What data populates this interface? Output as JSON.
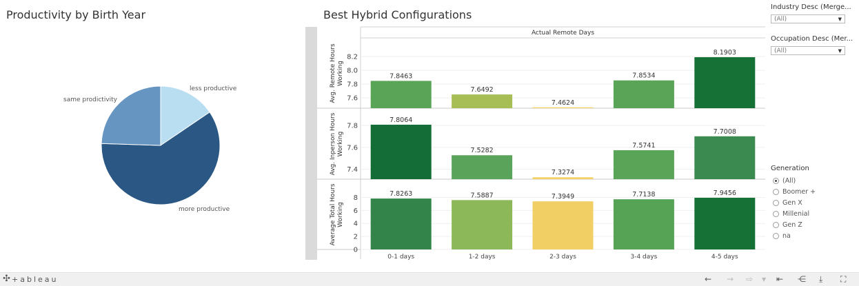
{
  "pie": {
    "title": "Productivity by Birth Year",
    "chart_data": {
      "type": "pie",
      "title": "Productivity by Birth Year",
      "slices": [
        {
          "label": "less productive",
          "value": 0.155,
          "color": "#b9ddf1"
        },
        {
          "label": "more productive",
          "value": 0.6,
          "color": "#2a5783"
        },
        {
          "label": "same prodictivity",
          "value": 0.245,
          "color": "#6795c2"
        }
      ]
    }
  },
  "bars": {
    "title": "Best Hybrid Configurations",
    "header": "Actual Remote Days",
    "chart_data": [
      {
        "type": "bar",
        "ylabel": "Avg. Remote Hours Working",
        "ylim": [
          7.45,
          8.3
        ],
        "ticks": [
          "8.2",
          "8.0",
          "7.8",
          "7.6"
        ],
        "tick_values": [
          8.2,
          8.0,
          7.8,
          7.6
        ],
        "categories": [
          "0-1 days",
          "1-2 days",
          "2-3 days",
          "3-4 days",
          "4-5 days"
        ],
        "values": [
          7.8463,
          7.6492,
          7.4624,
          7.8534,
          8.1903
        ],
        "labels": [
          "7.8463",
          "7.6492",
          "7.4624",
          "7.8534",
          "8.1903"
        ],
        "colors": [
          "#59a457",
          "#a6be55",
          "#f4d166",
          "#59a457",
          "#157135"
        ]
      },
      {
        "type": "bar",
        "ylabel": "Avg. Inperson Hours Working",
        "ylim": [
          7.31,
          7.85
        ],
        "ticks": [
          "7.8",
          "7.6",
          "7.4"
        ],
        "tick_values": [
          7.8,
          7.6,
          7.4
        ],
        "categories": [
          "0-1 days",
          "1-2 days",
          "2-3 days",
          "3-4 days",
          "4-5 days"
        ],
        "values": [
          7.8064,
          7.5282,
          7.3274,
          7.5741,
          7.7008
        ],
        "labels": [
          "7.8064",
          "7.5282",
          "7.3274",
          "7.5741",
          "7.7008"
        ],
        "colors": [
          "#146c36",
          "#5aa35a",
          "#f4d166",
          "#59a457",
          "#3b8a4f"
        ]
      },
      {
        "type": "bar",
        "ylabel": "Average Total Hours Working",
        "ylim": [
          0,
          9
        ],
        "ticks": [
          "8",
          "6",
          "4",
          "2",
          "0"
        ],
        "tick_values": [
          8,
          6,
          4,
          2,
          0
        ],
        "categories": [
          "0-1 days",
          "1-2 days",
          "2-3 days",
          "3-4 days",
          "4-5 days"
        ],
        "values": [
          7.8263,
          7.5887,
          7.3949,
          7.7138,
          7.9456
        ],
        "labels": [
          "7.8263",
          "7.5887",
          "7.3949",
          "7.7138",
          "7.9456"
        ],
        "colors": [
          "#33844b",
          "#8cb85a",
          "#f2cf65",
          "#56a356",
          "#157135"
        ]
      }
    ],
    "categories": [
      "0-1 days",
      "1-2 days",
      "2-3 days",
      "3-4 days",
      "4-5 days"
    ]
  },
  "filters": {
    "industry": {
      "title": "Industry Desc (Merge...",
      "value": "(All)"
    },
    "occupation": {
      "title": "Occupation Desc (Mer...",
      "value": "(All)"
    },
    "generation": {
      "title": "Generation",
      "options": [
        "(All)",
        "Boomer +",
        "Gen X",
        "Millenial",
        "Gen Z",
        "na"
      ],
      "selected": 0
    }
  },
  "footer": {
    "logo": "+ableau"
  },
  "icons": [
    "tableau-logo-icon",
    "undo-icon",
    "redo-icon",
    "revert-icon",
    "reset-icon",
    "share-icon",
    "download-icon",
    "fullscreen-icon"
  ]
}
